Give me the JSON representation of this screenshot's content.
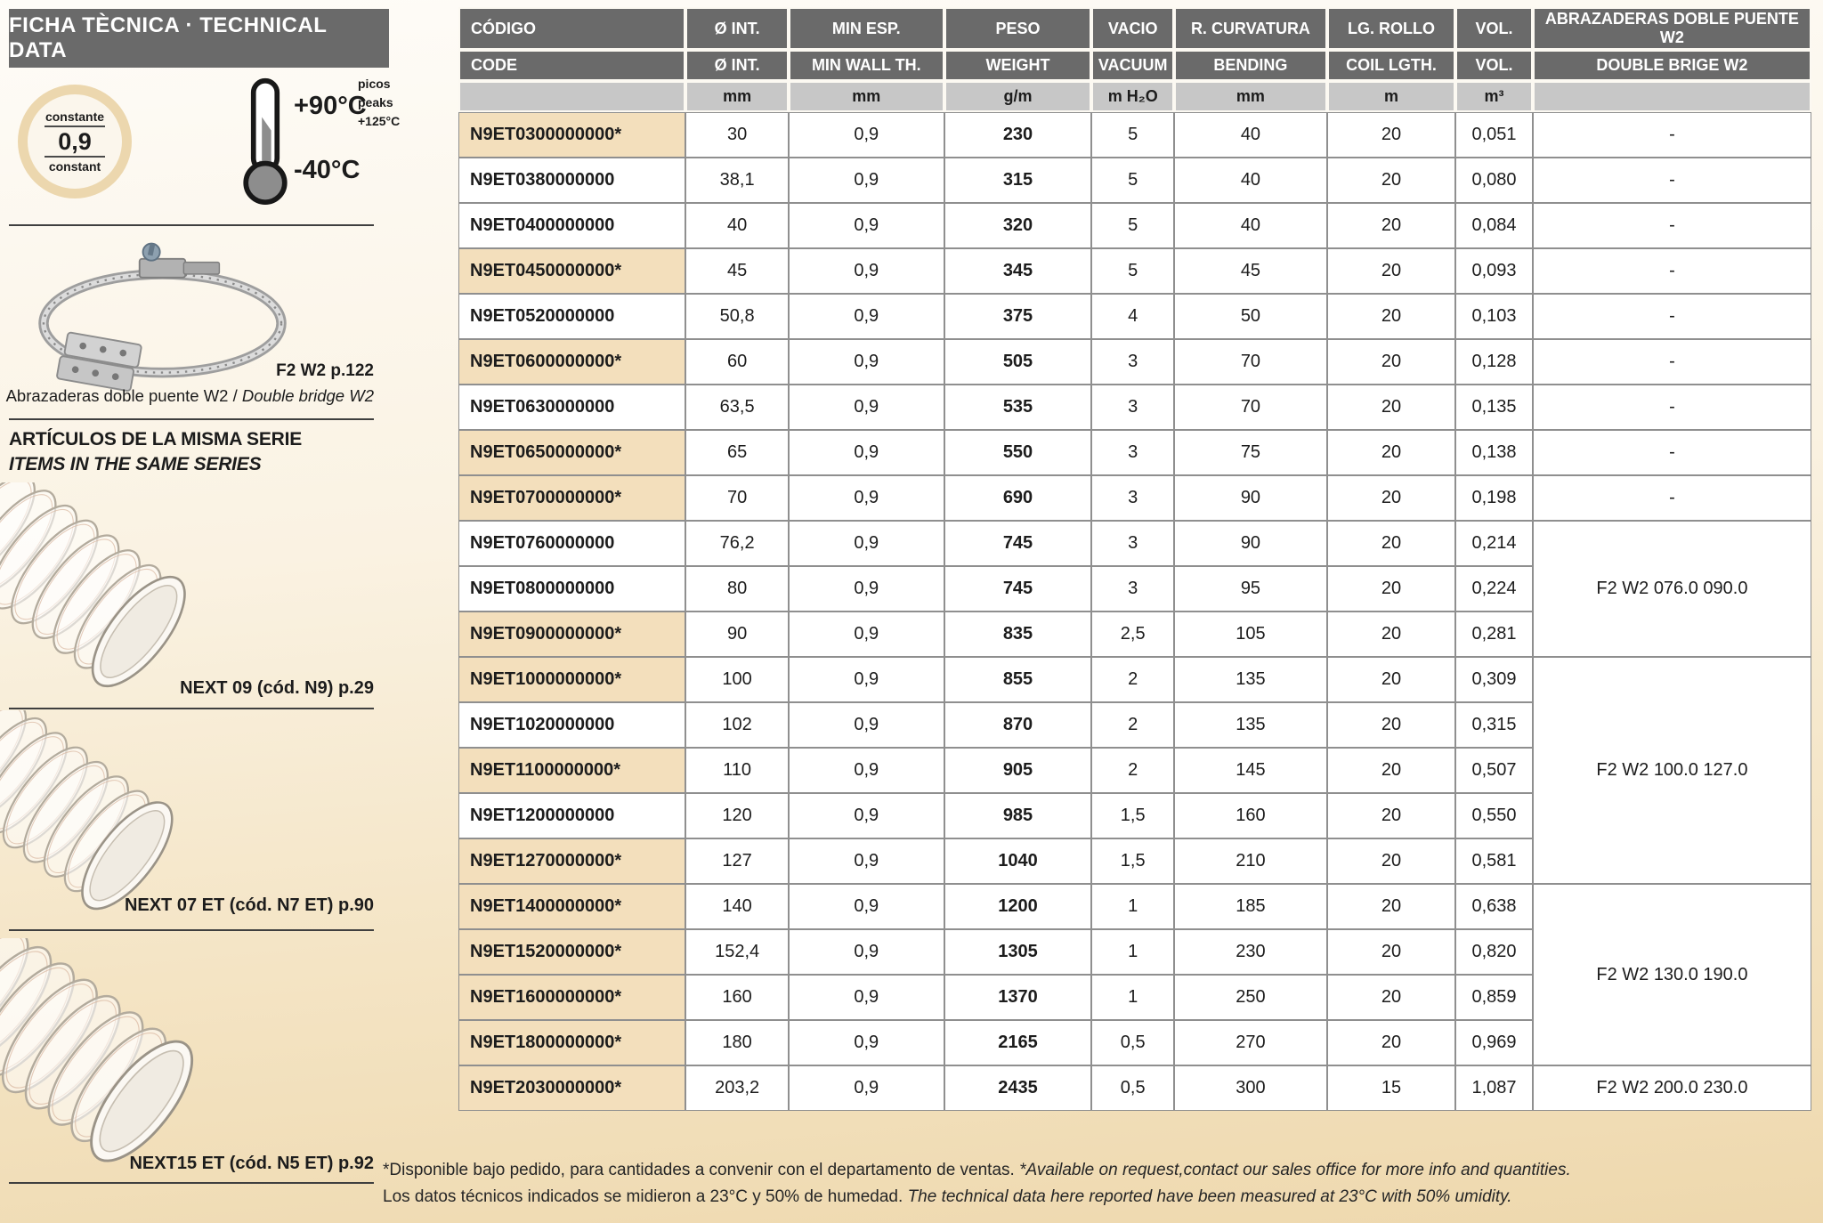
{
  "sidebar": {
    "banner": "FICHA TÈCNICA · TECHNICAL DATA",
    "property_badge": {
      "label_es": "constante",
      "value": "0,9",
      "label_en": "constant"
    },
    "temperature": {
      "max": "+90°C",
      "min": "-40°C",
      "peaks_es": "picos",
      "peaks_en": "peaks",
      "peaks_value": "+125°C"
    },
    "clamp_ref": "F2 W2 p.122",
    "clamp_caption_es": "Abrazaderas doble puente W2",
    "clamp_caption_sep": " / ",
    "clamp_caption_en": "Double bridge W2",
    "series_title_es": "ARTÍCULOS DE LA MISMA SERIE",
    "series_title_en": "ITEMS IN THE SAME SERIES",
    "series_items": [
      "NEXT 09 (cód. N9) p.29",
      "NEXT 07 ET (cód. N7 ET) p.90",
      "NEXT15 ET (cód. N5 ET) p.92"
    ]
  },
  "table": {
    "columns": [
      {
        "es": "CÓDIGO",
        "en": "CODE",
        "unit": ""
      },
      {
        "es": "Ø INT.",
        "en": "Ø INT.",
        "unit": "mm"
      },
      {
        "es": "MIN ESP.",
        "en": "MIN WALL TH.",
        "unit": "mm"
      },
      {
        "es": "PESO",
        "en": "WEIGHT",
        "unit": "g/m"
      },
      {
        "es": "VACIO",
        "en": "VACUUM",
        "unit": "m H₂O"
      },
      {
        "es": "R. CURVATURA",
        "en": "BENDING",
        "unit": "mm"
      },
      {
        "es": "LG. ROLLO",
        "en": "COIL LGTH.",
        "unit": "m"
      },
      {
        "es": "VOL.",
        "en": "VOL.",
        "unit": "m³"
      },
      {
        "es": "ABRAZADERAS DOBLE PUENTE W2",
        "en": "DOUBLE BRIGE W2",
        "unit": ""
      }
    ],
    "rows": [
      {
        "code": "N9ET0300000000*",
        "hl": true,
        "d": "30",
        "wall": "0,9",
        "w": "230",
        "vac": "5",
        "bend": "40",
        "coil": "20",
        "vol": "0,051",
        "clamp": "-",
        "span": 1
      },
      {
        "code": "N9ET0380000000",
        "hl": false,
        "d": "38,1",
        "wall": "0,9",
        "w": "315",
        "vac": "5",
        "bend": "40",
        "coil": "20",
        "vol": "0,080",
        "clamp": "-",
        "span": 1
      },
      {
        "code": "N9ET0400000000",
        "hl": false,
        "d": "40",
        "wall": "0,9",
        "w": "320",
        "vac": "5",
        "bend": "40",
        "coil": "20",
        "vol": "0,084",
        "clamp": "-",
        "span": 1
      },
      {
        "code": "N9ET0450000000*",
        "hl": true,
        "d": "45",
        "wall": "0,9",
        "w": "345",
        "vac": "5",
        "bend": "45",
        "coil": "20",
        "vol": "0,093",
        "clamp": "-",
        "span": 1
      },
      {
        "code": "N9ET0520000000",
        "hl": false,
        "d": "50,8",
        "wall": "0,9",
        "w": "375",
        "vac": "4",
        "bend": "50",
        "coil": "20",
        "vol": "0,103",
        "clamp": "-",
        "span": 1
      },
      {
        "code": "N9ET0600000000*",
        "hl": true,
        "d": "60",
        "wall": "0,9",
        "w": "505",
        "vac": "3",
        "bend": "70",
        "coil": "20",
        "vol": "0,128",
        "clamp": "-",
        "span": 1
      },
      {
        "code": "N9ET0630000000",
        "hl": false,
        "d": "63,5",
        "wall": "0,9",
        "w": "535",
        "vac": "3",
        "bend": "70",
        "coil": "20",
        "vol": "0,135",
        "clamp": "-",
        "span": 1
      },
      {
        "code": "N9ET0650000000*",
        "hl": true,
        "d": "65",
        "wall": "0,9",
        "w": "550",
        "vac": "3",
        "bend": "75",
        "coil": "20",
        "vol": "0,138",
        "clamp": "-",
        "span": 1
      },
      {
        "code": "N9ET0700000000*",
        "hl": true,
        "d": "70",
        "wall": "0,9",
        "w": "690",
        "vac": "3",
        "bend": "90",
        "coil": "20",
        "vol": "0,198",
        "clamp": "-",
        "span": 1
      },
      {
        "code": "N9ET0760000000",
        "hl": false,
        "d": "76,2",
        "wall": "0,9",
        "w": "745",
        "vac": "3",
        "bend": "90",
        "coil": "20",
        "vol": "0,214",
        "clamp": "F2 W2 076.0 090.0",
        "span": 3
      },
      {
        "code": "N9ET0800000000",
        "hl": false,
        "d": "80",
        "wall": "0,9",
        "w": "745",
        "vac": "3",
        "bend": "95",
        "coil": "20",
        "vol": "0,224",
        "clamp": null,
        "span": 0
      },
      {
        "code": "N9ET0900000000*",
        "hl": true,
        "d": "90",
        "wall": "0,9",
        "w": "835",
        "vac": "2,5",
        "bend": "105",
        "coil": "20",
        "vol": "0,281",
        "clamp": null,
        "span": 0
      },
      {
        "code": "N9ET1000000000*",
        "hl": true,
        "d": "100",
        "wall": "0,9",
        "w": "855",
        "vac": "2",
        "bend": "135",
        "coil": "20",
        "vol": "0,309",
        "clamp": "F2 W2 100.0 127.0",
        "span": 5
      },
      {
        "code": "N9ET1020000000",
        "hl": false,
        "d": "102",
        "wall": "0,9",
        "w": "870",
        "vac": "2",
        "bend": "135",
        "coil": "20",
        "vol": "0,315",
        "clamp": null,
        "span": 0
      },
      {
        "code": "N9ET1100000000*",
        "hl": true,
        "d": "110",
        "wall": "0,9",
        "w": "905",
        "vac": "2",
        "bend": "145",
        "coil": "20",
        "vol": "0,507",
        "clamp": null,
        "span": 0
      },
      {
        "code": "N9ET1200000000",
        "hl": false,
        "d": "120",
        "wall": "0,9",
        "w": "985",
        "vac": "1,5",
        "bend": "160",
        "coil": "20",
        "vol": "0,550",
        "clamp": null,
        "span": 0
      },
      {
        "code": "N9ET1270000000*",
        "hl": true,
        "d": "127",
        "wall": "0,9",
        "w": "1040",
        "vac": "1,5",
        "bend": "210",
        "coil": "20",
        "vol": "0,581",
        "clamp": null,
        "span": 0
      },
      {
        "code": "N9ET1400000000*",
        "hl": true,
        "d": "140",
        "wall": "0,9",
        "w": "1200",
        "vac": "1",
        "bend": "185",
        "coil": "20",
        "vol": "0,638",
        "clamp": "F2 W2 130.0 190.0",
        "span": 4
      },
      {
        "code": "N9ET1520000000*",
        "hl": true,
        "d": "152,4",
        "wall": "0,9",
        "w": "1305",
        "vac": "1",
        "bend": "230",
        "coil": "20",
        "vol": "0,820",
        "clamp": null,
        "span": 0
      },
      {
        "code": "N9ET1600000000*",
        "hl": true,
        "d": "160",
        "wall": "0,9",
        "w": "1370",
        "vac": "1",
        "bend": "250",
        "coil": "20",
        "vol": "0,859",
        "clamp": null,
        "span": 0
      },
      {
        "code": "N9ET1800000000*",
        "hl": true,
        "d": "180",
        "wall": "0,9",
        "w": "2165",
        "vac": "0,5",
        "bend": "270",
        "coil": "20",
        "vol": "0,969",
        "clamp": null,
        "span": 0
      },
      {
        "code": "N9ET2030000000*",
        "hl": true,
        "d": "203,2",
        "wall": "0,9",
        "w": "2435",
        "vac": "0,5",
        "bend": "300",
        "coil": "15",
        "vol": "1,087",
        "clamp": "F2 W2 200.0 230.0",
        "span": 1
      }
    ]
  },
  "footnotes": [
    {
      "es": "*Disponible bajo pedido, para cantidades a convenir con el departamento de ventas. ",
      "en": "*Available on request,contact our sales office for more info and quantities."
    },
    {
      "es": "Los datos técnicos indicados se midieron a 23°C y 50% de humedad. ",
      "en": "The technical data here reported have been measured at 23°C with 50% umidity."
    }
  ],
  "colors": {
    "header_bg": "#6a6a6a",
    "units_bg": "#c7c7c7",
    "highlight_bg": "#f3dfbc",
    "page_bottom": "#eed8ad"
  }
}
